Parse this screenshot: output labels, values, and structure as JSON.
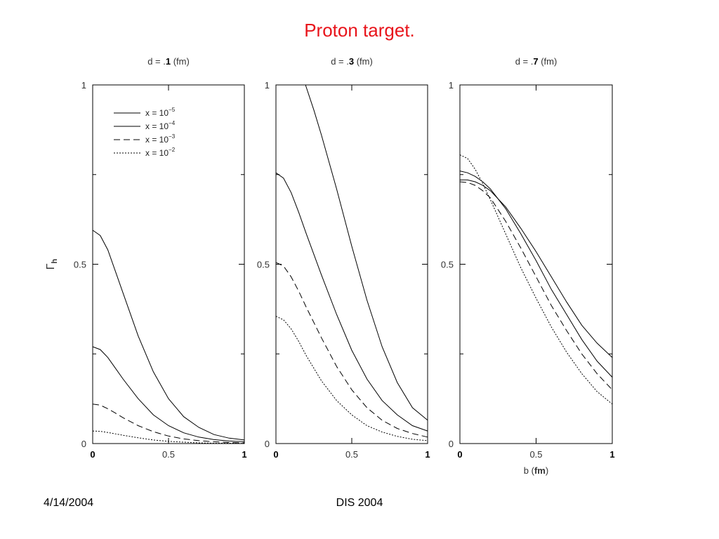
{
  "slide": {
    "title": "Proton target.",
    "title_color": "#e8141b",
    "footer_left": "4/14/2004",
    "footer_center": "DIS 2004"
  },
  "chart_data": [
    {
      "type": "line",
      "title_prefix": "d = .",
      "title_bold": "1",
      "title_suffix": " (fm)",
      "ylabel": "Γ",
      "ylabel_sub": "h",
      "xlabel": "",
      "xlim": [
        0,
        1
      ],
      "ylim": [
        0,
        1
      ],
      "x_ticks": [
        "0",
        "0.5",
        "1"
      ],
      "y_ticks": [
        "0",
        "0.5",
        "1"
      ],
      "legend": {
        "position": "top-left",
        "entries": [
          {
            "prefix": "x = 10",
            "exp": "−5",
            "style": "solid"
          },
          {
            "prefix": "x = 10",
            "exp": "−4",
            "style": "solid"
          },
          {
            "prefix": "x = 10",
            "exp": "−3",
            "style": "dashed"
          },
          {
            "prefix": "x = 10",
            "exp": "−2",
            "style": "dotted"
          }
        ]
      },
      "series": [
        {
          "style": "solid",
          "x": [
            0,
            0.05,
            0.1,
            0.15,
            0.2,
            0.3,
            0.4,
            0.5,
            0.6,
            0.7,
            0.8,
            0.9,
            1.0
          ],
          "y": [
            0.595,
            0.58,
            0.54,
            0.48,
            0.42,
            0.3,
            0.2,
            0.125,
            0.075,
            0.045,
            0.025,
            0.015,
            0.01
          ]
        },
        {
          "style": "solid",
          "x": [
            0,
            0.05,
            0.1,
            0.15,
            0.2,
            0.3,
            0.4,
            0.5,
            0.6,
            0.7,
            0.8,
            0.9,
            1.0
          ],
          "y": [
            0.27,
            0.262,
            0.24,
            0.21,
            0.18,
            0.125,
            0.08,
            0.05,
            0.03,
            0.018,
            0.011,
            0.007,
            0.005
          ]
        },
        {
          "style": "dashed",
          "x": [
            0,
            0.05,
            0.1,
            0.15,
            0.2,
            0.3,
            0.4,
            0.5,
            0.6,
            0.7,
            0.8,
            0.9,
            1.0
          ],
          "y": [
            0.11,
            0.107,
            0.097,
            0.085,
            0.072,
            0.05,
            0.033,
            0.021,
            0.013,
            0.008,
            0.005,
            0.003,
            0.002
          ]
        },
        {
          "style": "dotted",
          "x": [
            0,
            0.05,
            0.1,
            0.2,
            0.3,
            0.4,
            0.5,
            0.6,
            0.7,
            0.8,
            0.9,
            1.0
          ],
          "y": [
            0.035,
            0.034,
            0.031,
            0.023,
            0.016,
            0.01,
            0.006,
            0.004,
            0.002,
            0.001,
            0.001,
            0.0005
          ]
        }
      ]
    },
    {
      "type": "line",
      "title_prefix": "d = .",
      "title_bold": "3",
      "title_suffix": " (fm)",
      "xlabel": "",
      "xlim": [
        0,
        1
      ],
      "ylim": [
        0,
        1
      ],
      "x_ticks": [
        "0",
        "0.5",
        "1"
      ],
      "y_ticks": [
        "0",
        "0.5",
        "1"
      ],
      "series": [
        {
          "style": "solid",
          "x": [
            0.195,
            0.25,
            0.3,
            0.4,
            0.5,
            0.6,
            0.7,
            0.8,
            0.9,
            1.0
          ],
          "y": [
            1.0,
            0.93,
            0.86,
            0.71,
            0.55,
            0.4,
            0.27,
            0.17,
            0.1,
            0.065
          ]
        },
        {
          "style": "solid",
          "x": [
            0,
            0.05,
            0.1,
            0.15,
            0.2,
            0.3,
            0.4,
            0.5,
            0.6,
            0.7,
            0.8,
            0.9,
            1.0
          ],
          "y": [
            0.755,
            0.74,
            0.7,
            0.645,
            0.585,
            0.47,
            0.36,
            0.26,
            0.18,
            0.12,
            0.08,
            0.05,
            0.035
          ]
        },
        {
          "style": "dashed",
          "x": [
            0,
            0.05,
            0.1,
            0.15,
            0.2,
            0.3,
            0.4,
            0.5,
            0.6,
            0.7,
            0.8,
            0.9,
            1.0
          ],
          "y": [
            0.505,
            0.495,
            0.465,
            0.425,
            0.38,
            0.295,
            0.215,
            0.15,
            0.1,
            0.065,
            0.042,
            0.028,
            0.018
          ]
        },
        {
          "style": "dotted",
          "x": [
            0,
            0.05,
            0.1,
            0.15,
            0.2,
            0.3,
            0.4,
            0.5,
            0.6,
            0.7,
            0.8,
            0.9,
            1.0
          ],
          "y": [
            0.355,
            0.345,
            0.32,
            0.285,
            0.245,
            0.175,
            0.12,
            0.08,
            0.05,
            0.032,
            0.02,
            0.012,
            0.008
          ]
        }
      ]
    },
    {
      "type": "line",
      "title_prefix": "d = .",
      "title_bold": "7",
      "title_suffix": " (fm)",
      "xlabel": "b",
      "xlabel_bold": "fm",
      "xlim": [
        0,
        1
      ],
      "ylim": [
        0,
        1
      ],
      "x_ticks": [
        "0",
        "0.5",
        "1"
      ],
      "y_ticks": [
        "0",
        "0.5",
        "1"
      ],
      "series": [
        {
          "style": "solid",
          "x": [
            0,
            0.05,
            0.1,
            0.15,
            0.2,
            0.3,
            0.4,
            0.5,
            0.6,
            0.7,
            0.8,
            0.9,
            1.0
          ],
          "y": [
            0.735,
            0.735,
            0.73,
            0.72,
            0.705,
            0.66,
            0.6,
            0.535,
            0.465,
            0.395,
            0.33,
            0.28,
            0.24
          ]
        },
        {
          "style": "solid",
          "x": [
            0,
            0.05,
            0.1,
            0.15,
            0.2,
            0.3,
            0.4,
            0.5,
            0.6,
            0.7,
            0.8,
            0.9,
            1.0
          ],
          "y": [
            0.76,
            0.755,
            0.745,
            0.73,
            0.71,
            0.655,
            0.585,
            0.51,
            0.43,
            0.36,
            0.29,
            0.23,
            0.185
          ]
        },
        {
          "style": "dashed",
          "x": [
            0,
            0.05,
            0.1,
            0.15,
            0.2,
            0.3,
            0.4,
            0.5,
            0.6,
            0.7,
            0.8,
            0.9,
            1.0
          ],
          "y": [
            0.73,
            0.728,
            0.72,
            0.705,
            0.685,
            0.62,
            0.545,
            0.465,
            0.385,
            0.315,
            0.25,
            0.195,
            0.15
          ]
        },
        {
          "style": "dotted",
          "x": [
            0,
            0.05,
            0.1,
            0.15,
            0.2,
            0.3,
            0.4,
            0.5,
            0.6,
            0.7,
            0.8,
            0.9,
            1.0
          ],
          "y": [
            0.805,
            0.795,
            0.765,
            0.725,
            0.68,
            0.585,
            0.49,
            0.405,
            0.325,
            0.255,
            0.195,
            0.145,
            0.11
          ]
        }
      ]
    }
  ]
}
